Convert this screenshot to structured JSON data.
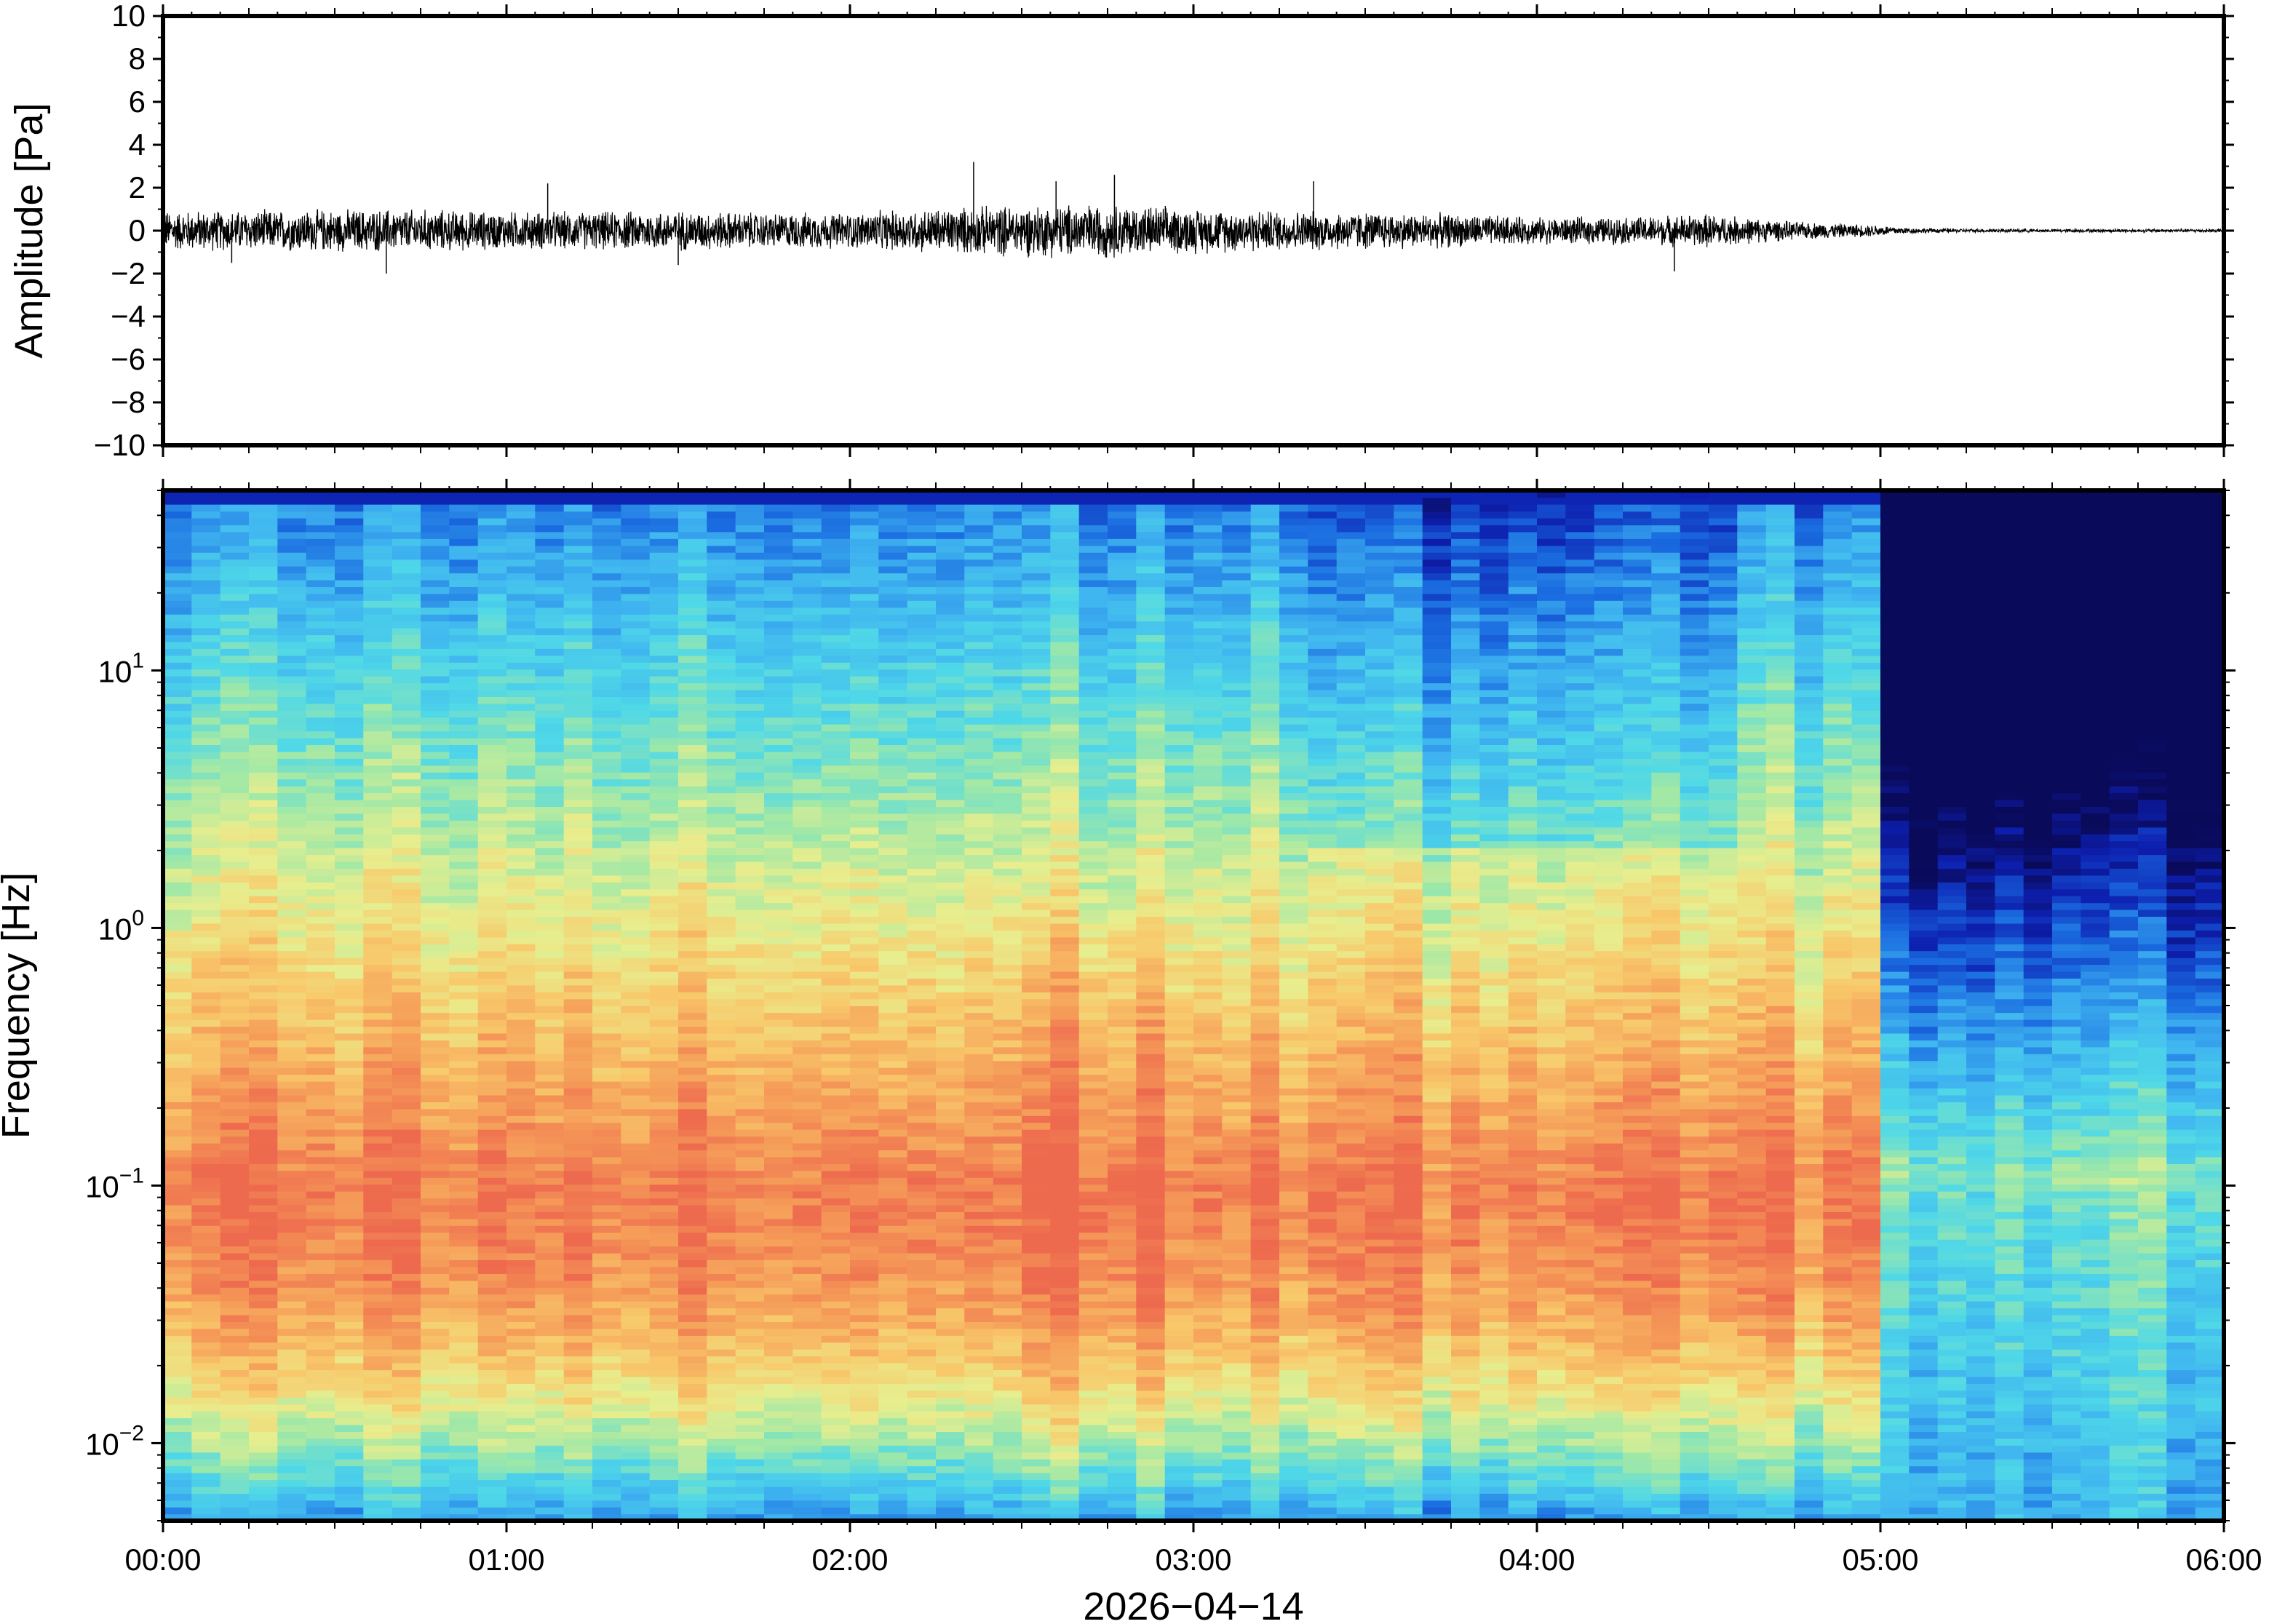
{
  "chart_data": [
    {
      "type": "line",
      "panel": "waveform",
      "ylabel": "Amplitude [Pa]",
      "ylim": [
        -10,
        10
      ],
      "yticks": [
        10,
        8,
        6,
        4,
        2,
        0,
        -2,
        -4,
        -6,
        -8,
        -10
      ],
      "ytick_labels": [
        "10",
        "8",
        "6",
        "4",
        "2",
        "0",
        "−2",
        "−4",
        "−6",
        "−8",
        "−10"
      ],
      "xlim_hours": [
        0,
        6
      ],
      "envelope": {
        "hours": [
          0,
          0.25,
          0.5,
          0.75,
          1.0,
          1.25,
          1.5,
          1.75,
          2.0,
          2.25,
          2.5,
          2.75,
          3.0,
          3.25,
          3.5,
          3.75,
          4.0,
          4.25,
          4.5,
          4.75,
          5.0,
          5.1,
          5.25,
          5.5,
          5.75,
          6.0
        ],
        "amplitude_pa": [
          0.9,
          0.9,
          0.95,
          0.95,
          0.85,
          0.85,
          0.9,
          0.8,
          0.8,
          1.0,
          1.15,
          1.2,
          1.0,
          0.9,
          0.85,
          0.75,
          0.6,
          0.6,
          0.75,
          0.4,
          0.25,
          0.12,
          0.08,
          0.07,
          0.07,
          0.08
        ]
      },
      "peaks_pa": [
        [
          0.2,
          -1.5
        ],
        [
          0.65,
          -2.0
        ],
        [
          1.12,
          2.2
        ],
        [
          2.36,
          3.2
        ],
        [
          2.6,
          2.3
        ],
        [
          2.77,
          2.6
        ],
        [
          3.35,
          2.3
        ],
        [
          4.4,
          -1.9
        ],
        [
          1.5,
          -1.6
        ]
      ],
      "grid": false
    },
    {
      "type": "heatmap",
      "panel": "spectrogram",
      "ylabel": "Frequency [Hz]",
      "yscale": "log",
      "ylim_hz": [
        0.005,
        50
      ],
      "ytick_labels": [
        {
          "base": "10",
          "exp": "1",
          "value": 10
        },
        {
          "base": "10",
          "exp": "0",
          "value": 1
        },
        {
          "base": "10",
          "exp": "−1",
          "value": 0.1
        },
        {
          "base": "10",
          "exp": "−2",
          "value": 0.01
        }
      ],
      "colormap": "jet",
      "colormap_stops": [
        "#0a0a5a",
        "#0d1fb0",
        "#1a6be0",
        "#3fb4f0",
        "#4fd8e8",
        "#9ee8a8",
        "#e8ee8e",
        "#f8c86a",
        "#f59a58",
        "#ee6a4e"
      ],
      "description_hours": {
        "quiet_segment_start": 5.03,
        "peak_energy_band_hz": [
          0.05,
          0.3
        ]
      },
      "xlabel": "2026−04−14",
      "xtick_labels": [
        "00:00",
        "01:00",
        "02:00",
        "03:00",
        "04:00",
        "05:00",
        "06:00"
      ],
      "xlim_hours": [
        0,
        6
      ],
      "grid": false
    }
  ]
}
